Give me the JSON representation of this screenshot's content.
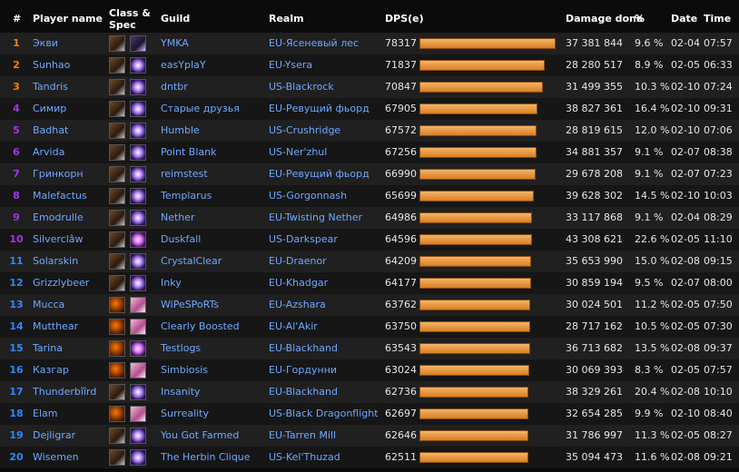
{
  "headers": {
    "rank": "#",
    "player": "Player name",
    "classspec_1": "Class &",
    "classspec_2": "Spec",
    "guild": "Guild",
    "realm": "Realm",
    "dps": "DPS(e)",
    "damage": "Damage done",
    "percent": "%",
    "date": "Date",
    "time": "Time"
  },
  "rows": [
    {
      "rank": "1",
      "player": "Экви",
      "guild": "YMKA",
      "realm": "EU-Ясеневый лес",
      "dps": "78317",
      "damage": "37 381 844",
      "percent": "9.6 %",
      "date": "02-04",
      "time": "07:57"
    },
    {
      "rank": "2",
      "player": "Sunhao",
      "guild": "easYpIaY",
      "realm": "EU-Ysera",
      "dps": "71837",
      "damage": "28 280 517",
      "percent": "8.9 %",
      "date": "02-05",
      "time": "06:33"
    },
    {
      "rank": "3",
      "player": "Tandris",
      "guild": "dntbr",
      "realm": "US-Blackrock",
      "dps": "70847",
      "damage": "31 499 355",
      "percent": "10.3 %",
      "date": "02-10",
      "time": "07:24"
    },
    {
      "rank": "4",
      "player": "Симир",
      "guild": "Старые друзья",
      "realm": "EU-Ревущий фьорд",
      "dps": "67905",
      "damage": "38 827 361",
      "percent": "16.4 %",
      "date": "02-10",
      "time": "09:31"
    },
    {
      "rank": "5",
      "player": "Badhat",
      "guild": "Humble",
      "realm": "US-Crushridge",
      "dps": "67572",
      "damage": "28 819 615",
      "percent": "12.0 %",
      "date": "02-10",
      "time": "07:06"
    },
    {
      "rank": "6",
      "player": "Arvida",
      "guild": "Point Blank",
      "realm": "US-Ner'zhul",
      "dps": "67256",
      "damage": "34 881 357",
      "percent": "9.1 %",
      "date": "02-07",
      "time": "08:38"
    },
    {
      "rank": "7",
      "player": "Гринкорн",
      "guild": "reimstest",
      "realm": "EU-Ревущий фьорд",
      "dps": "66990",
      "damage": "29 678 208",
      "percent": "9.1 %",
      "date": "02-07",
      "time": "07:23"
    },
    {
      "rank": "8",
      "player": "Malefactus",
      "guild": "Templarus",
      "realm": "US-Gorgonnash",
      "dps": "65699",
      "damage": "39 628 302",
      "percent": "14.5 %",
      "date": "02-10",
      "time": "10:03"
    },
    {
      "rank": "9",
      "player": "Emodrulle",
      "guild": "Nether",
      "realm": "EU-Twisting Nether",
      "dps": "64986",
      "damage": "33 117 868",
      "percent": "9.1 %",
      "date": "02-04",
      "time": "08:29"
    },
    {
      "rank": "10",
      "player": "Silverclâw",
      "guild": "Duskfall",
      "realm": "US-Darkspear",
      "dps": "64596",
      "damage": "43 308 621",
      "percent": "22.6 %",
      "date": "02-05",
      "time": "11:10"
    },
    {
      "rank": "11",
      "player": "Solarskin",
      "guild": "CrystalClear",
      "realm": "EU-Draenor",
      "dps": "64209",
      "damage": "35 653 990",
      "percent": "15.0 %",
      "date": "02-08",
      "time": "09:15"
    },
    {
      "rank": "12",
      "player": "Grizzlybeer",
      "guild": "Inky",
      "realm": "EU-Khadgar",
      "dps": "64177",
      "damage": "30 859 194",
      "percent": "9.5 %",
      "date": "02-07",
      "time": "08:00"
    },
    {
      "rank": "13",
      "player": "Mucca",
      "guild": "WiPeSPoRTs",
      "realm": "EU-Azshara",
      "dps": "63762",
      "damage": "30 024 501",
      "percent": "11.2 %",
      "date": "02-05",
      "time": "07:50"
    },
    {
      "rank": "14",
      "player": "Mutthear",
      "guild": "Clearly Boosted",
      "realm": "EU-Al'Akir",
      "dps": "63750",
      "damage": "28 717 162",
      "percent": "10.5 %",
      "date": "02-05",
      "time": "07:30"
    },
    {
      "rank": "15",
      "player": "Tarina",
      "guild": "Testlogs",
      "realm": "EU-Blackhand",
      "dps": "63543",
      "damage": "36 713 682",
      "percent": "13.5 %",
      "date": "02-08",
      "time": "09:37"
    },
    {
      "rank": "16",
      "player": "Казгар",
      "guild": "Simbiosis",
      "realm": "EU-Гордунни",
      "dps": "63024",
      "damage": "30 069 393",
      "percent": "8.3 %",
      "date": "02-05",
      "time": "07:57"
    },
    {
      "rank": "17",
      "player": "Thunderbîîrd",
      "guild": "Insanity",
      "realm": "EU-Blackhand",
      "dps": "62736",
      "damage": "38 329 261",
      "percent": "20.4 %",
      "date": "02-08",
      "time": "10:10"
    },
    {
      "rank": "18",
      "player": "Elam",
      "guild": "Surreality",
      "realm": "US-Black Dragonflight",
      "dps": "62697",
      "damage": "32 654 285",
      "percent": "9.9 %",
      "date": "02-10",
      "time": "08:40"
    },
    {
      "rank": "19",
      "player": "Dejligrar",
      "guild": "You Got Farmed",
      "realm": "EU-Tarren Mill",
      "dps": "62646",
      "damage": "31 786 997",
      "percent": "11.3 %",
      "date": "02-05",
      "time": "08:27"
    },
    {
      "rank": "20",
      "player": "Wisemen",
      "guild": "The Herbin Clique",
      "realm": "US-Kel'Thuzad",
      "dps": "62511",
      "damage": "35 094 473",
      "percent": "11.6 %",
      "date": "02-08",
      "time": "09:21"
    }
  ],
  "icons": [
    {
      "class": "warrior",
      "spec": "mage"
    },
    {
      "class": "warrior",
      "spec": "glow"
    },
    {
      "class": "warrior",
      "spec": "glow"
    },
    {
      "class": "warrior",
      "spec": "glow"
    },
    {
      "class": "warrior",
      "spec": "glow"
    },
    {
      "class": "warrior",
      "spec": "glow"
    },
    {
      "class": "warrior",
      "spec": "glow"
    },
    {
      "class": "warrior",
      "spec": "glow"
    },
    {
      "class": "warrior",
      "spec": "glow"
    },
    {
      "class": "warrior",
      "spec": "glow2"
    },
    {
      "class": "warrior",
      "spec": "glow"
    },
    {
      "class": "warrior",
      "spec": "glow"
    },
    {
      "class": "warlock",
      "spec": "pink"
    },
    {
      "class": "warlock",
      "spec": "pink"
    },
    {
      "class": "warlock",
      "spec": "glow2"
    },
    {
      "class": "warlock",
      "spec": "pink"
    },
    {
      "class": "warrior",
      "spec": "glow"
    },
    {
      "class": "warlock",
      "spec": "pink"
    },
    {
      "class": "warrior",
      "spec": "glow"
    },
    {
      "class": "warrior",
      "spec": "glow"
    }
  ],
  "rank_colors": {
    "orange": "#ff8000",
    "purple": "#a335ee",
    "blue": "#2f87ff"
  }
}
